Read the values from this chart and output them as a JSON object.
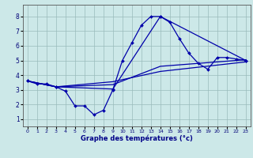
{
  "xlabel": "Graphe des températures (°c)",
  "background_color": "#cce8e8",
  "line_color": "#0000aa",
  "grid_color": "#99bbbb",
  "xlim": [
    -0.5,
    23.5
  ],
  "ylim": [
    0.5,
    8.8
  ],
  "xticks": [
    0,
    1,
    2,
    3,
    4,
    5,
    6,
    7,
    8,
    9,
    10,
    11,
    12,
    13,
    14,
    15,
    16,
    17,
    18,
    19,
    20,
    21,
    22,
    23
  ],
  "yticks": [
    1,
    2,
    3,
    4,
    5,
    6,
    7,
    8
  ],
  "line1": {
    "x": [
      0,
      1,
      2,
      3,
      4,
      5,
      6,
      7,
      8,
      9,
      10,
      11,
      12,
      13,
      14,
      15,
      16,
      17,
      18,
      19,
      20,
      21,
      22,
      23
    ],
    "y": [
      3.6,
      3.4,
      3.4,
      3.2,
      2.9,
      1.9,
      1.9,
      1.3,
      1.6,
      3.0,
      5.0,
      6.2,
      7.4,
      8.0,
      8.0,
      7.6,
      6.5,
      5.5,
      4.8,
      4.4,
      5.2,
      5.2,
      5.1,
      5.0
    ]
  },
  "line2": {
    "x": [
      0,
      3,
      9,
      14,
      23
    ],
    "y": [
      3.6,
      3.2,
      3.05,
      8.0,
      5.0
    ]
  },
  "line3": {
    "x": [
      0,
      3,
      9,
      14,
      23
    ],
    "y": [
      3.6,
      3.2,
      3.35,
      4.6,
      5.05
    ]
  },
  "line4": {
    "x": [
      0,
      3,
      9,
      14,
      23
    ],
    "y": [
      3.6,
      3.2,
      3.55,
      4.25,
      4.9
    ]
  }
}
